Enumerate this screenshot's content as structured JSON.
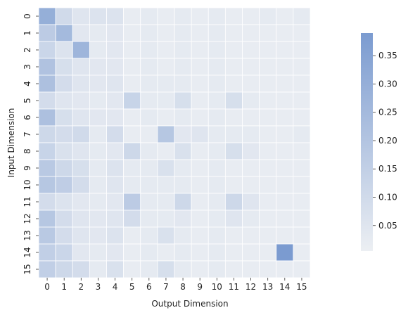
{
  "chart_data": {
    "type": "heatmap",
    "xlabel": "Output Dimension",
    "ylabel": "Input Dimension",
    "x_categories": [
      "0",
      "1",
      "2",
      "3",
      "4",
      "5",
      "6",
      "7",
      "8",
      "9",
      "10",
      "11",
      "12",
      "13",
      "14",
      "15"
    ],
    "y_categories": [
      "0",
      "1",
      "2",
      "3",
      "4",
      "5",
      "6",
      "7",
      "8",
      "9",
      "10",
      "11",
      "12",
      "13",
      "14",
      "15"
    ],
    "colorbar": {
      "min": 0.005,
      "max": 0.39,
      "ticks": [
        "0.05",
        "0.10",
        "0.15",
        "0.20",
        "0.25",
        "0.30",
        "0.35"
      ],
      "low_color": "#eceff3",
      "high_color": "#7b9bd0"
    },
    "values": [
      [
        0.3,
        0.1,
        0.05,
        0.06,
        0.06,
        0.02,
        0.03,
        0.02,
        0.03,
        0.02,
        0.03,
        0.02,
        0.02,
        0.03,
        0.02,
        0.03
      ],
      [
        0.17,
        0.25,
        0.04,
        0.03,
        0.04,
        0.02,
        0.03,
        0.02,
        0.03,
        0.02,
        0.03,
        0.02,
        0.02,
        0.02,
        0.02,
        0.02
      ],
      [
        0.12,
        0.06,
        0.27,
        0.03,
        0.04,
        0.02,
        0.03,
        0.02,
        0.03,
        0.02,
        0.03,
        0.02,
        0.02,
        0.02,
        0.02,
        0.02
      ],
      [
        0.21,
        0.08,
        0.05,
        0.04,
        0.04,
        0.02,
        0.03,
        0.02,
        0.03,
        0.02,
        0.03,
        0.02,
        0.02,
        0.02,
        0.02,
        0.02
      ],
      [
        0.22,
        0.09,
        0.05,
        0.04,
        0.05,
        0.02,
        0.03,
        0.03,
        0.03,
        0.02,
        0.03,
        0.02,
        0.02,
        0.02,
        0.02,
        0.02
      ],
      [
        0.09,
        0.05,
        0.04,
        0.03,
        0.04,
        0.13,
        0.03,
        0.03,
        0.08,
        0.02,
        0.03,
        0.08,
        0.03,
        0.02,
        0.02,
        0.02
      ],
      [
        0.22,
        0.08,
        0.05,
        0.04,
        0.04,
        0.02,
        0.03,
        0.02,
        0.03,
        0.02,
        0.03,
        0.02,
        0.02,
        0.02,
        0.02,
        0.02
      ],
      [
        0.11,
        0.09,
        0.1,
        0.03,
        0.09,
        0.02,
        0.02,
        0.19,
        0.04,
        0.05,
        0.03,
        0.03,
        0.03,
        0.02,
        0.02,
        0.03
      ],
      [
        0.13,
        0.07,
        0.05,
        0.03,
        0.04,
        0.11,
        0.03,
        0.02,
        0.07,
        0.02,
        0.03,
        0.08,
        0.04,
        0.02,
        0.02,
        0.02
      ],
      [
        0.18,
        0.11,
        0.08,
        0.03,
        0.06,
        0.03,
        0.03,
        0.07,
        0.03,
        0.02,
        0.03,
        0.02,
        0.02,
        0.02,
        0.02,
        0.02
      ],
      [
        0.19,
        0.16,
        0.09,
        0.03,
        0.05,
        0.03,
        0.03,
        0.03,
        0.03,
        0.02,
        0.03,
        0.02,
        0.02,
        0.02,
        0.02,
        0.02
      ],
      [
        0.09,
        0.06,
        0.04,
        0.03,
        0.04,
        0.17,
        0.03,
        0.03,
        0.11,
        0.02,
        0.03,
        0.11,
        0.05,
        0.02,
        0.02,
        0.02
      ],
      [
        0.19,
        0.09,
        0.05,
        0.04,
        0.05,
        0.09,
        0.03,
        0.03,
        0.04,
        0.02,
        0.03,
        0.05,
        0.03,
        0.02,
        0.02,
        0.02
      ],
      [
        0.18,
        0.09,
        0.05,
        0.04,
        0.06,
        0.02,
        0.03,
        0.07,
        0.03,
        0.02,
        0.03,
        0.02,
        0.02,
        0.02,
        0.02,
        0.02
      ],
      [
        0.15,
        0.12,
        0.04,
        0.03,
        0.04,
        0.02,
        0.03,
        0.02,
        0.03,
        0.02,
        0.03,
        0.02,
        0.02,
        0.02,
        0.39,
        0.02
      ],
      [
        0.15,
        0.11,
        0.09,
        0.03,
        0.07,
        0.02,
        0.03,
        0.08,
        0.03,
        0.02,
        0.03,
        0.02,
        0.02,
        0.02,
        0.02,
        0.02
      ]
    ]
  }
}
